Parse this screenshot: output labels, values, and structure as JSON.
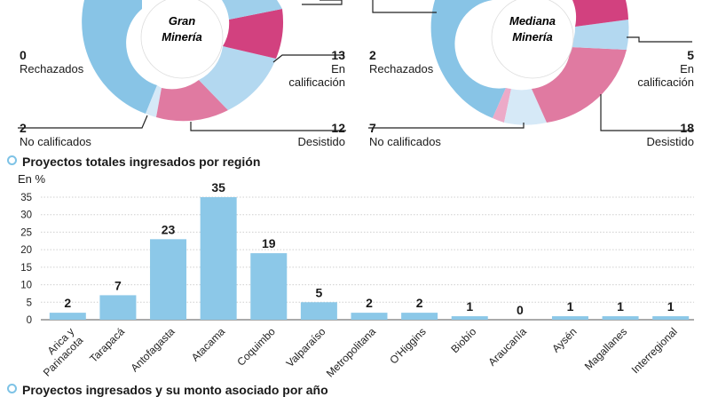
{
  "donut_gran": {
    "title_line1": "Gran",
    "title_line2": "Minería",
    "rechazados": {
      "value": "0",
      "label": "Rechazados"
    },
    "no_calificados": {
      "value": "2",
      "label": "No calificados"
    },
    "en_calificacion": {
      "value": "13",
      "label_line1": "En",
      "label_line2": "calificación"
    },
    "desistido": {
      "value": "12",
      "label": "Desistido"
    }
  },
  "donut_mediana": {
    "title_line1": "Mediana",
    "title_line2": "Minería",
    "rechazados": {
      "value": "2",
      "label": "Rechazados"
    },
    "no_calificados": {
      "value": "7",
      "label": "No calificados"
    },
    "en_calificacion": {
      "value": "5",
      "label_line1": "En",
      "label_line2": "calificación"
    },
    "desistido": {
      "value": "18",
      "label": "Desistido"
    }
  },
  "section1": {
    "title": "Proyectos totales ingresados por región",
    "unit": "En %"
  },
  "section2": {
    "title": "Proyectos ingresados y su monto asociado por año"
  },
  "colors": {
    "bar": "#8cc8e8",
    "light_blue": "#b3d8f0",
    "magenta": "#d2417f",
    "pink": "#e07aa1",
    "light_pink": "#ecaac8",
    "pale_blue": "#d6e9f7",
    "sky": "#88c4e6",
    "accent_dot": "#7ec3e6"
  },
  "chart_data": [
    {
      "type": "bar",
      "title": "Proyectos totales ingresados por región",
      "ylabel": "En %",
      "ylim": [
        0,
        35
      ],
      "yticks": [
        0,
        5,
        10,
        15,
        20,
        25,
        30,
        35
      ],
      "grid": true,
      "categories": [
        "Arica y Parinacota",
        "Tarapacá",
        "Antofagasta",
        "Atacama",
        "Coquimbo",
        "Valparaíso",
        "Metropolitana",
        "O'Higgins",
        "Biobío",
        "Araucanía",
        "Aysén",
        "Magallanes",
        "Interregional"
      ],
      "values": [
        2,
        7,
        23,
        35,
        19,
        5,
        2,
        2,
        1,
        0,
        1,
        1,
        1
      ],
      "value_labels": [
        "2",
        "7",
        "23",
        "35",
        "19",
        "5",
        "2",
        "2",
        "1",
        "0",
        "1",
        "1",
        "1"
      ]
    },
    {
      "type": "pie",
      "title": "Gran Minería",
      "categories": [
        "Rechazados",
        "No calificados",
        "Desistido",
        "En calificación"
      ],
      "values": [
        0,
        2,
        12,
        13
      ]
    },
    {
      "type": "pie",
      "title": "Mediana Minería",
      "categories": [
        "Rechazados",
        "No calificados",
        "Desistido",
        "En calificación"
      ],
      "values": [
        2,
        7,
        18,
        5
      ]
    }
  ]
}
